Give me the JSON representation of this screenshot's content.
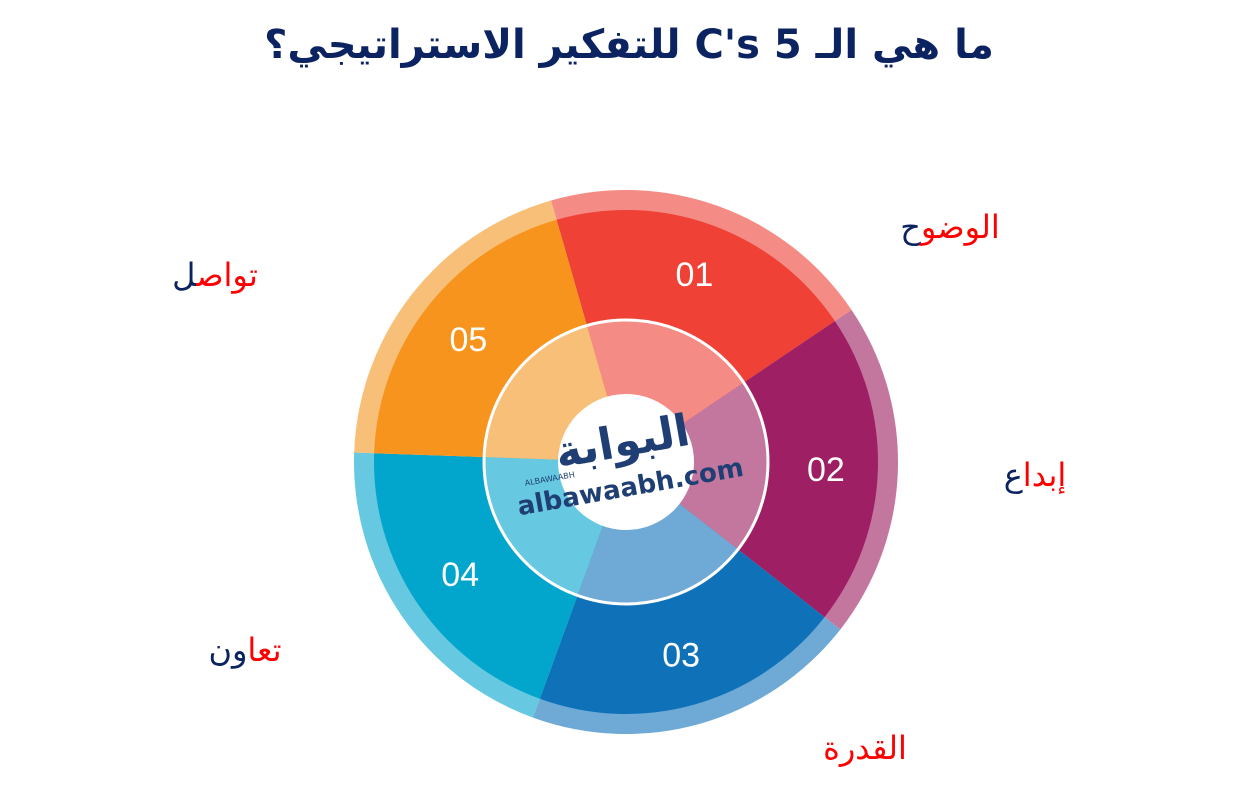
{
  "title": "ما هي الـ 5 C's للتفكير الاستراتيجي؟",
  "logo": {
    "arabic": "البوابة",
    "latin": "ALBAWAABH",
    "url": "albawaabh.com"
  },
  "label_colors": {
    "primary": "#ff0000",
    "secondary": "#0b2360"
  },
  "segments": [
    {
      "number": "01",
      "label_red": "الوضو",
      "label_navy": "ح",
      "color": "#ef4136",
      "light": "#f48b85"
    },
    {
      "number": "02",
      "label_red": "إبدا",
      "label_navy": "ع",
      "color": "#9e1f63",
      "light": "#c4779e"
    },
    {
      "number": "03",
      "label_red": "القدرة",
      "label_navy": "",
      "color": "#0f72b9",
      "light": "#6fa9d6"
    },
    {
      "number": "04",
      "label_red": "تعا",
      "label_navy": "ون",
      "color": "#02a5cb",
      "light": "#66c9e1"
    },
    {
      "number": "05",
      "label_red": "تواص",
      "label_navy": "ل",
      "color": "#f7941d",
      "light": "#f8bf78"
    }
  ]
}
